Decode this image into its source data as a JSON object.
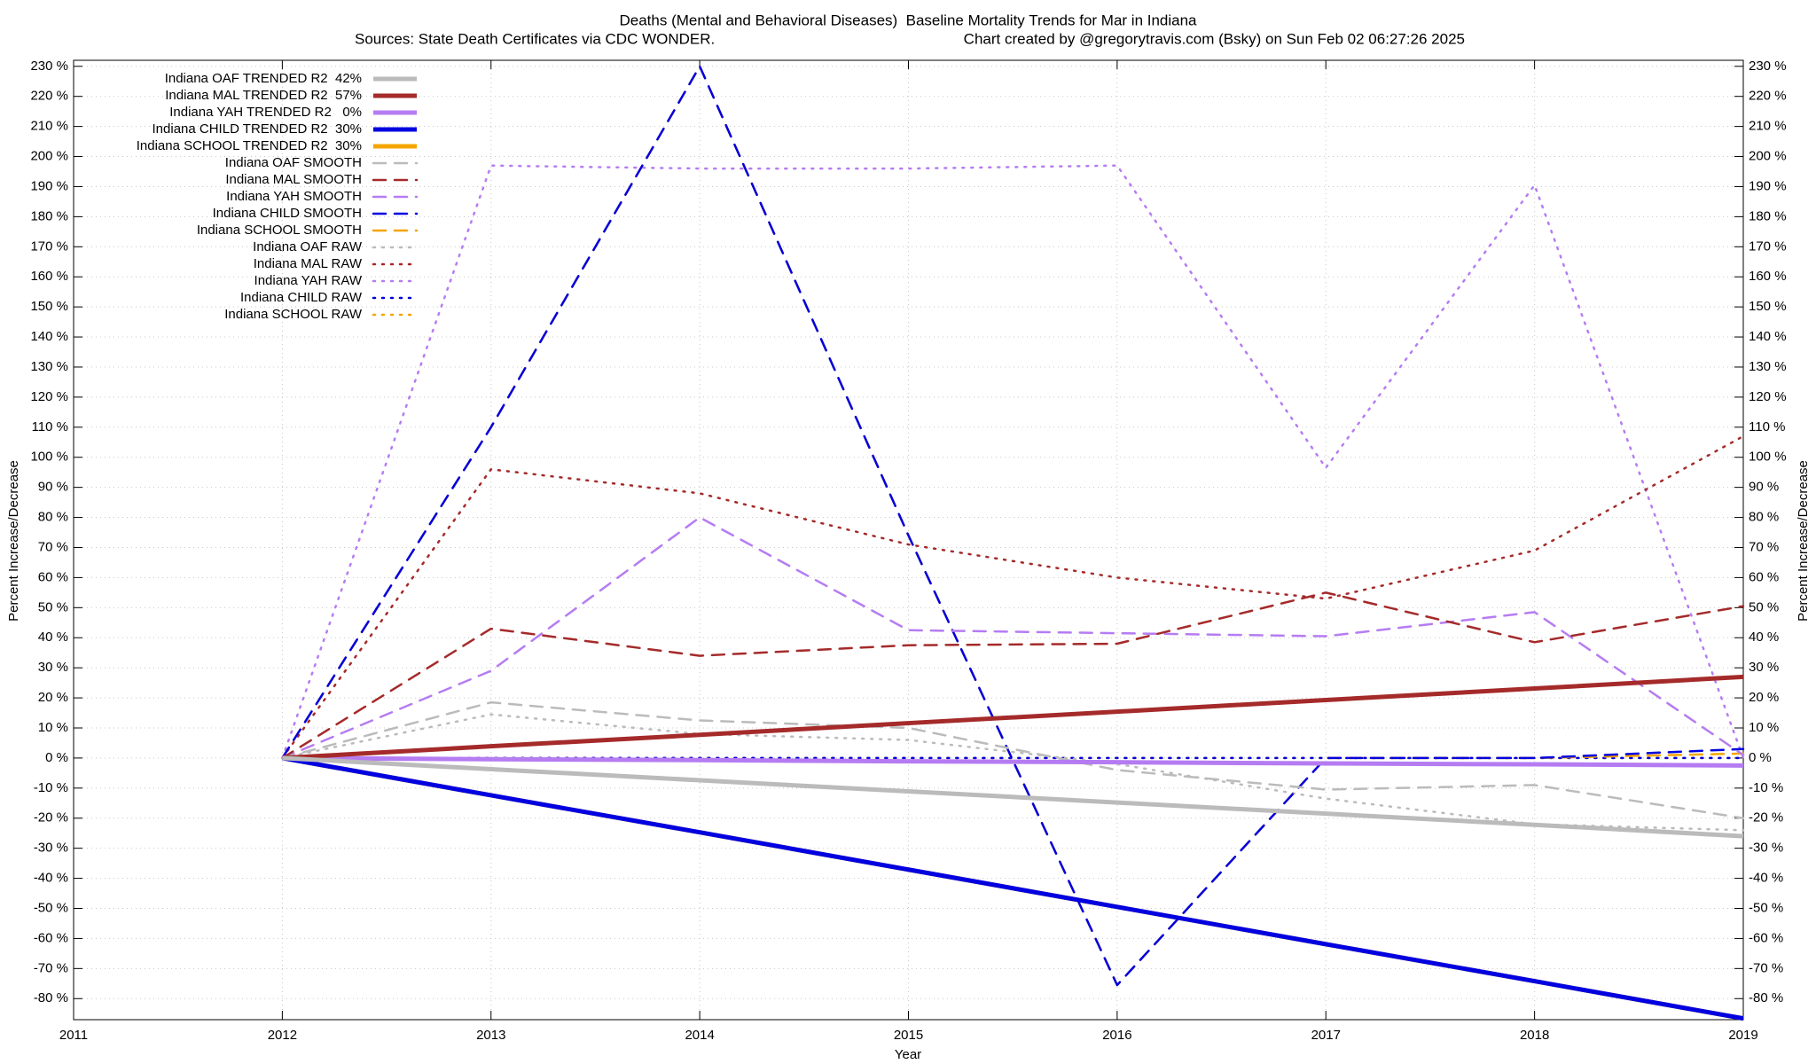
{
  "chart_data": {
    "type": "line",
    "title": "Deaths (Mental and Behavioral Diseases)  Baseline Mortality Trends for Mar in Indiana",
    "source": "Sources: State Death Certificates via CDC WONDER.",
    "credit": "Chart created by @gregorytravis.com (Bsky) on Sun Feb 02 06:27:26 2025",
    "xlabel": "Year",
    "ylabel": "Percent Increase/Decrease",
    "y2label": "Percent Increase/Decrease",
    "x": [
      2012,
      2013,
      2014,
      2015,
      2016,
      2017,
      2018,
      2019
    ],
    "xlim": [
      2011,
      2019
    ],
    "xticks": [
      2011,
      2012,
      2013,
      2014,
      2015,
      2016,
      2017,
      2018,
      2019
    ],
    "ylim": [
      -87,
      232
    ],
    "yticks": [
      {
        "value": 230,
        "label": "230 %"
      },
      {
        "value": 220,
        "label": "220 %"
      },
      {
        "value": 210,
        "label": "210 %"
      },
      {
        "value": 200,
        "label": "200 %"
      },
      {
        "value": 190,
        "label": "190 %"
      },
      {
        "value": 180,
        "label": "180 %"
      },
      {
        "value": 170,
        "label": "170 %"
      },
      {
        "value": 160,
        "label": "160 %"
      },
      {
        "value": 150,
        "label": "150 %"
      },
      {
        "value": 140,
        "label": "140 %"
      },
      {
        "value": 130,
        "label": "130 %"
      },
      {
        "value": 120,
        "label": "120 %"
      },
      {
        "value": 110,
        "label": "110 %"
      },
      {
        "value": 100,
        "label": "100 %"
      },
      {
        "value": 90,
        "label": "90 %"
      },
      {
        "value": 80,
        "label": "80 %"
      },
      {
        "value": 70,
        "label": "70 %"
      },
      {
        "value": 60,
        "label": "60 %"
      },
      {
        "value": 50,
        "label": "50 %"
      },
      {
        "value": 40,
        "label": "40 %"
      },
      {
        "value": 30,
        "label": "30 %"
      },
      {
        "value": 20,
        "label": "20 %"
      },
      {
        "value": 10,
        "label": "10 %"
      },
      {
        "value": 0,
        "label": "0 %"
      },
      {
        "value": -10,
        "label": "-10 %"
      },
      {
        "value": -20,
        "label": "-20 %"
      },
      {
        "value": -30,
        "label": "-30 %"
      },
      {
        "value": -40,
        "label": "-40 %"
      },
      {
        "value": -50,
        "label": "-50 %"
      },
      {
        "value": -60,
        "label": "-60 %"
      },
      {
        "value": -70,
        "label": "-70 %"
      },
      {
        "value": -80,
        "label": "-80 %"
      }
    ],
    "y2lim": [
      -87,
      232
    ],
    "y2ticks": [
      {
        "value": 230,
        "label": "230 %"
      },
      {
        "value": 220,
        "label": "220 %"
      },
      {
        "value": 210,
        "label": "210 %"
      },
      {
        "value": 200,
        "label": "200 %"
      },
      {
        "value": 190,
        "label": "190 %"
      },
      {
        "value": 180,
        "label": "180 %"
      },
      {
        "value": 170,
        "label": "170 %"
      },
      {
        "value": 160,
        "label": "160 %"
      },
      {
        "value": 150,
        "label": "150 %"
      },
      {
        "value": 140,
        "label": "140 %"
      },
      {
        "value": 130,
        "label": "130 %"
      },
      {
        "value": 120,
        "label": "120 %"
      },
      {
        "value": 110,
        "label": "110 %"
      },
      {
        "value": 100,
        "label": "100 %"
      },
      {
        "value": 90,
        "label": "90 %"
      },
      {
        "value": 80,
        "label": "80 %"
      },
      {
        "value": 70,
        "label": "70 %"
      },
      {
        "value": 60,
        "label": "60 %"
      },
      {
        "value": 50,
        "label": "50 %"
      },
      {
        "value": 40,
        "label": "40 %"
      },
      {
        "value": 30,
        "label": "30 %"
      },
      {
        "value": 20,
        "label": "20 %"
      },
      {
        "value": 10,
        "label": "10 %"
      },
      {
        "value": 0,
        "label": "0 %"
      },
      {
        "value": -10,
        "label": "-10 %"
      },
      {
        "value": -20,
        "label": "-20 %"
      },
      {
        "value": -30,
        "label": "-30 %"
      },
      {
        "value": -40,
        "label": "-40 %"
      },
      {
        "value": -50,
        "label": "-50 %"
      },
      {
        "value": -60,
        "label": "-60 %"
      },
      {
        "value": -70,
        "label": "-70 %"
      },
      {
        "value": -80,
        "label": "-80 %"
      }
    ],
    "grid": true,
    "legend": "top left",
    "series": [
      {
        "name": "Indiana OAF TRENDED R2  42%",
        "color": "#bbbbbb",
        "style": "solid",
        "values": [
          0,
          -3.7,
          -7.4,
          -11.1,
          -14.8,
          -18.5,
          -22.2,
          -26
        ]
      },
      {
        "name": "Indiana MAL TRENDED R2  57%",
        "color": "#a52a2a",
        "style": "solid",
        "values": [
          0,
          3.9,
          7.7,
          11.6,
          15.4,
          19.3,
          23.1,
          27
        ]
      },
      {
        "name": "Indiana YAH TRENDED R2   0%",
        "color": "#b57cf2",
        "style": "solid",
        "values": [
          0,
          -0.4,
          -0.7,
          -1.1,
          -1.4,
          -1.8,
          -2.1,
          -2.5
        ]
      },
      {
        "name": "Indiana CHILD TRENDED R2  30%",
        "color": "#0000e0",
        "style": "solid",
        "values": [
          0,
          -12.4,
          -24.7,
          -37.1,
          -49.5,
          -61.9,
          -74.2,
          -86.6
        ]
      },
      {
        "name": "Indiana SCHOOL TRENDED R2  30%",
        "color": "#f5a500",
        "style": "solid",
        "values": [
          0,
          -12.4,
          -24.7,
          -37.1,
          -49.5,
          -61.9,
          -74.2,
          -86.6
        ]
      },
      {
        "name": "Indiana OAF SMOOTH",
        "color": "#bbbbbb",
        "style": "dashed",
        "values": [
          0,
          18.5,
          12.5,
          10,
          -4,
          -10.5,
          -9,
          -20
        ]
      },
      {
        "name": "Indiana MAL SMOOTH",
        "color": "#a52a2a",
        "style": "dashed",
        "values": [
          0,
          43,
          34,
          37.5,
          38,
          55,
          38.5,
          50.5
        ]
      },
      {
        "name": "Indiana YAH SMOOTH",
        "color": "#b57cf2",
        "style": "dashed",
        "values": [
          0,
          29,
          80,
          42.5,
          41.5,
          40.5,
          48.5,
          1
        ]
      },
      {
        "name": "Indiana CHILD SMOOTH",
        "color": "#0000e0",
        "style": "dashed",
        "values": [
          0,
          110,
          230,
          74,
          -75.5,
          0,
          0,
          3
        ]
      },
      {
        "name": "Indiana SCHOOL SMOOTH",
        "color": "#f5a500",
        "style": "dashed",
        "values": [
          0,
          110,
          230,
          74,
          -75.5,
          0,
          0,
          1.5
        ]
      },
      {
        "name": "Indiana OAF RAW",
        "color": "#bbbbbb",
        "style": "dotted",
        "values": [
          0,
          14.5,
          8,
          6,
          -2,
          -13.5,
          -22,
          -24
        ]
      },
      {
        "name": "Indiana MAL RAW",
        "color": "#a52a2a",
        "style": "dotted",
        "values": [
          0,
          96,
          88,
          71,
          60,
          53,
          69,
          107
        ]
      },
      {
        "name": "Indiana YAH RAW",
        "color": "#b57cf2",
        "style": "dotted",
        "values": [
          0,
          197,
          196,
          196,
          197,
          96.5,
          190.5,
          0
        ]
      },
      {
        "name": "Indiana CHILD RAW",
        "color": "#0000e0",
        "style": "dotted",
        "values": [
          0,
          0,
          0,
          0,
          0,
          0,
          0,
          0
        ]
      },
      {
        "name": "Indiana SCHOOL RAW",
        "color": "#f5a500",
        "style": "dotted",
        "values": [
          0,
          0,
          0,
          0,
          0,
          0,
          0,
          0
        ]
      }
    ]
  }
}
